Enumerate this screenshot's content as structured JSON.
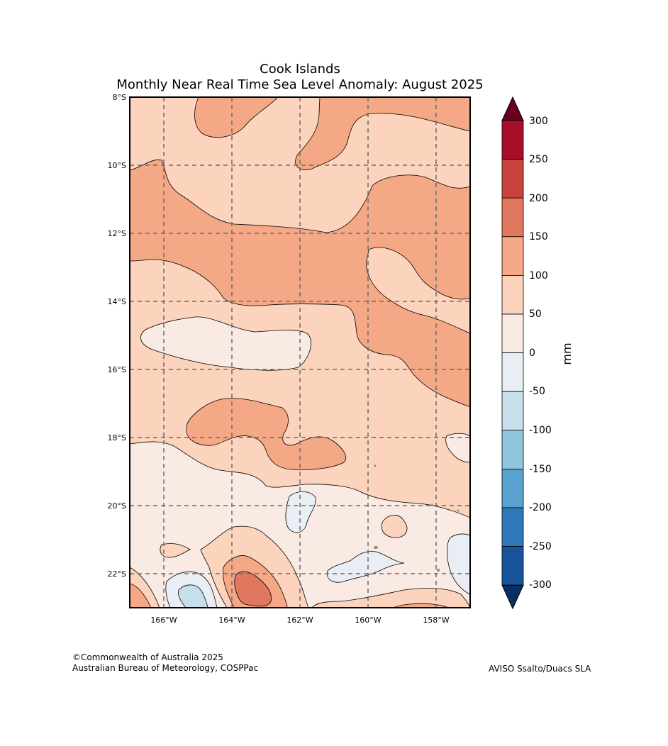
{
  "title": {
    "line1": "Cook Islands",
    "line2": "Monthly Near Real Time Sea Level Anomaly: August 2025"
  },
  "map": {
    "x_ticks": [
      "166°W",
      "164°W",
      "162°W",
      "160°W",
      "158°W"
    ],
    "y_ticks": [
      "8°S",
      "10°S",
      "12°S",
      "14°S",
      "16°S",
      "18°S",
      "20°S",
      "22°S"
    ],
    "extent": {
      "lon_min": -167,
      "lon_max": -157,
      "lat_min": -23,
      "lat_max": -8
    },
    "gridlines": true
  },
  "colorbar": {
    "unit_label": "mm",
    "ticks": [
      "300",
      "250",
      "200",
      "150",
      "100",
      "50",
      "0",
      "-50",
      "-100",
      "-150",
      "-200",
      "-250",
      "-300"
    ],
    "colors": [
      "#67001f",
      "#a50f2a",
      "#c8433e",
      "#e0775f",
      "#f4a885",
      "#fcd3bc",
      "#f9ebe3",
      "#e8eef3",
      "#c5dfeb",
      "#92c5de",
      "#5aa2ce",
      "#2f78b7",
      "#18549a",
      "#053061"
    ]
  },
  "footer": {
    "copyright": "©Commonwealth of Australia 2025",
    "bureau": "Australian Bureau of Meteorology, COSPPac",
    "source": "AVISO Ssalto/Duacs SLA"
  }
}
